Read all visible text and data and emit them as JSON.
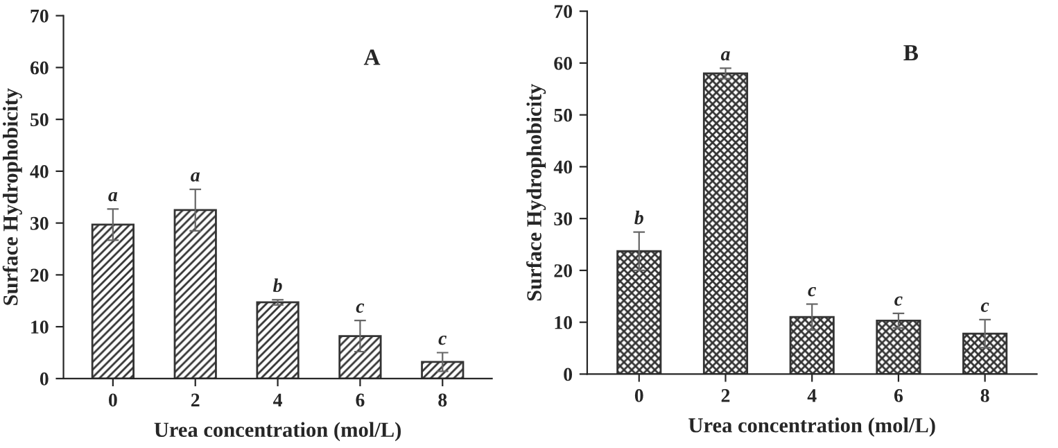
{
  "chart_data": [
    {
      "type": "bar",
      "title": "A",
      "xlabel": "Urea concentration (mol/L)",
      "ylabel": "Surface Hydrophobicity",
      "categories": [
        "0",
        "2",
        "4",
        "6",
        "8"
      ],
      "series": [
        {
          "color": "#333333",
          "values": [
            29.7,
            32.5,
            14.7,
            8.2,
            3.2
          ],
          "errors": [
            3.0,
            4.0,
            0.5,
            3.0,
            1.8
          ]
        }
      ],
      "ylim": [
        0,
        70
      ],
      "yticks": [
        0,
        10,
        20,
        30,
        40,
        50,
        60,
        70
      ],
      "grid": false,
      "legend": false,
      "annotations": [
        {
          "text": "a",
          "x": "0",
          "y": 32.7
        },
        {
          "text": "a",
          "x": "2",
          "y": 36.5
        },
        {
          "text": "b",
          "x": "4",
          "y": 15.2
        },
        {
          "text": "c",
          "x": "6",
          "y": 11.2
        },
        {
          "text": "c",
          "x": "8",
          "y": 5.0
        }
      ]
    },
    {
      "type": "bar",
      "title": "B",
      "xlabel": "Urea concentration (mol/L)",
      "ylabel": "Surface Hydrophobicity",
      "categories": [
        "0",
        "2",
        "4",
        "6",
        "8"
      ],
      "series": [
        {
          "color": "#333333",
          "values": [
            23.7,
            58.0,
            11.0,
            10.3,
            7.8
          ],
          "errors": [
            3.7,
            1.0,
            2.5,
            1.4,
            2.7
          ]
        }
      ],
      "ylim": [
        0,
        70
      ],
      "yticks": [
        0,
        10,
        20,
        30,
        40,
        50,
        60,
        70
      ],
      "grid": false,
      "legend": false,
      "annotations": [
        {
          "text": "b",
          "x": "0",
          "y": 27.4
        },
        {
          "text": "a",
          "x": "2",
          "y": 59.0
        },
        {
          "text": "c",
          "x": "4",
          "y": 13.5
        },
        {
          "text": "c",
          "x": "6",
          "y": 11.7
        },
        {
          "text": "c",
          "x": "8",
          "y": 10.5
        }
      ]
    }
  ]
}
